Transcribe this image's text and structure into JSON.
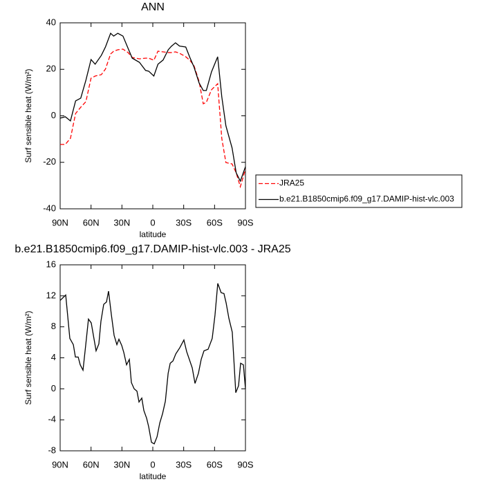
{
  "chart_data": [
    {
      "type": "line",
      "title": "ANN",
      "x_label": "latitude",
      "y_label": "Surf sensible heat (W/m²)",
      "x": [
        90,
        85,
        80,
        75,
        70,
        65,
        60,
        56,
        50,
        46,
        41,
        38,
        34,
        29,
        24,
        20,
        13,
        7,
        4,
        -1,
        -5,
        -10,
        -15,
        -18,
        -22,
        -26,
        -32,
        -36,
        -40,
        -45,
        -49,
        -52,
        -57,
        -63,
        -67,
        -71,
        -77,
        -81,
        -85,
        -90
      ],
      "series": [
        {
          "name": "JRA25",
          "color": "#ff0000",
          "dash": true,
          "values": [
            -12.3,
            -12.3,
            -9.7,
            1,
            3.7,
            6.1,
            16.2,
            17.1,
            17.7,
            20.1,
            26.6,
            27.8,
            28.4,
            28.7,
            27.2,
            25.1,
            24.5,
            24.8,
            24.8,
            23.9,
            27.8,
            27.5,
            27.2,
            27.2,
            27.5,
            26.9,
            25.4,
            23.9,
            21.6,
            14.7,
            5.2,
            5.8,
            11.2,
            13.8,
            -9.7,
            -20.1,
            -20.7,
            -24.5,
            -30.5,
            -23
          ]
        },
        {
          "name": "b.e21.B1850cmip6.f09_g17.DAMIP-hist-vlc.003",
          "color": "#000000",
          "dash": false,
          "values": [
            -1,
            -0.4,
            -2.2,
            6.4,
            7.6,
            15.3,
            24.2,
            22.2,
            26,
            29.6,
            35.5,
            34.3,
            35.5,
            34.3,
            29,
            24.8,
            23,
            19.5,
            19.2,
            17.1,
            22.2,
            24,
            28.4,
            29.9,
            31.4,
            30,
            29.6,
            25.1,
            21,
            14.1,
            10.9,
            10.9,
            18.9,
            25.4,
            8.2,
            -4.3,
            -13.8,
            -24.5,
            -28.1,
            -21.9
          ]
        }
      ],
      "xlim": [
        90,
        -90
      ],
      "ylim": [
        -40,
        40
      ],
      "xticks": [
        {
          "value": 90,
          "label": "90N"
        },
        {
          "value": 60,
          "label": "60N"
        },
        {
          "value": 30,
          "label": "30N"
        },
        0,
        {
          "value": -30,
          "label": "30S"
        },
        {
          "value": -60,
          "label": "60S"
        },
        {
          "value": -90,
          "label": "90S"
        }
      ],
      "yticks": [
        -40,
        -20,
        0,
        20,
        40
      ],
      "legend": "right"
    },
    {
      "type": "line",
      "title": "b.e21.B1850cmip6.f09_g17.DAMIP-hist-vlc.003 - JRA25",
      "x_label": "latitude",
      "y_label": "Surf sensible heat (W/m²)",
      "x": [
        90,
        84.6,
        80.6,
        77.2,
        75.2,
        72.5,
        70.5,
        67.8,
        65.2,
        62.5,
        59.8,
        55.1,
        52.4,
        50.4,
        47.7,
        45,
        43,
        40.3,
        37.6,
        34.9,
        32.9,
        30.2,
        28.2,
        25.5,
        22.8,
        20.8,
        18.1,
        15.4,
        13.4,
        10.7,
        8.7,
        6,
        4,
        1.3,
        -1.4,
        -4.1,
        -6.8,
        -9.5,
        -12.2,
        -14.9,
        -16.9,
        -19.6,
        -22.3,
        -26.2,
        -30.2,
        -32.9,
        -38.3,
        -41,
        -44.3,
        -47,
        -49.7,
        -53.7,
        -57.7,
        -60.4,
        -63.1,
        -66.4,
        -69.1,
        -71.2,
        -73.9,
        -77.2,
        -80.6,
        -83.3,
        -85.3,
        -88,
        -90
      ],
      "values": [
        11.4,
        12.1,
        6.5,
        5.7,
        4.1,
        4.1,
        3.1,
        2.4,
        5.6,
        9,
        8.5,
        4.9,
        5.8,
        8.7,
        10.9,
        11.2,
        12.6,
        9.6,
        6.9,
        5.7,
        6.4,
        5.6,
        4.7,
        3.1,
        3.8,
        0.8,
        0,
        -0.3,
        -1.7,
        -1.2,
        -2.8,
        -3.8,
        -4.9,
        -6.9,
        -7.1,
        -6.2,
        -4.4,
        -3.2,
        -1.6,
        2,
        3.3,
        3.6,
        4.5,
        5.3,
        6.3,
        4.8,
        2.7,
        0.7,
        2,
        3.8,
        4.9,
        5.1,
        6.5,
        9.5,
        13.6,
        12.4,
        12.3,
        11.1,
        9.1,
        7.3,
        -0.5,
        0.4,
        3.3,
        3.1,
        0
      ],
      "color": "#000000",
      "xlim": [
        90,
        -90
      ],
      "ylim": [
        -8,
        16
      ],
      "xticks": [
        {
          "value": 90,
          "label": "90N"
        },
        {
          "value": 60,
          "label": "60N"
        },
        {
          "value": 30,
          "label": "30N"
        },
        0,
        {
          "value": -30,
          "label": "30S"
        },
        {
          "value": -60,
          "label": "60S"
        },
        {
          "value": -90,
          "label": "90S"
        }
      ],
      "yticks": [
        -8,
        -4,
        0,
        4,
        8,
        12,
        16
      ]
    }
  ]
}
